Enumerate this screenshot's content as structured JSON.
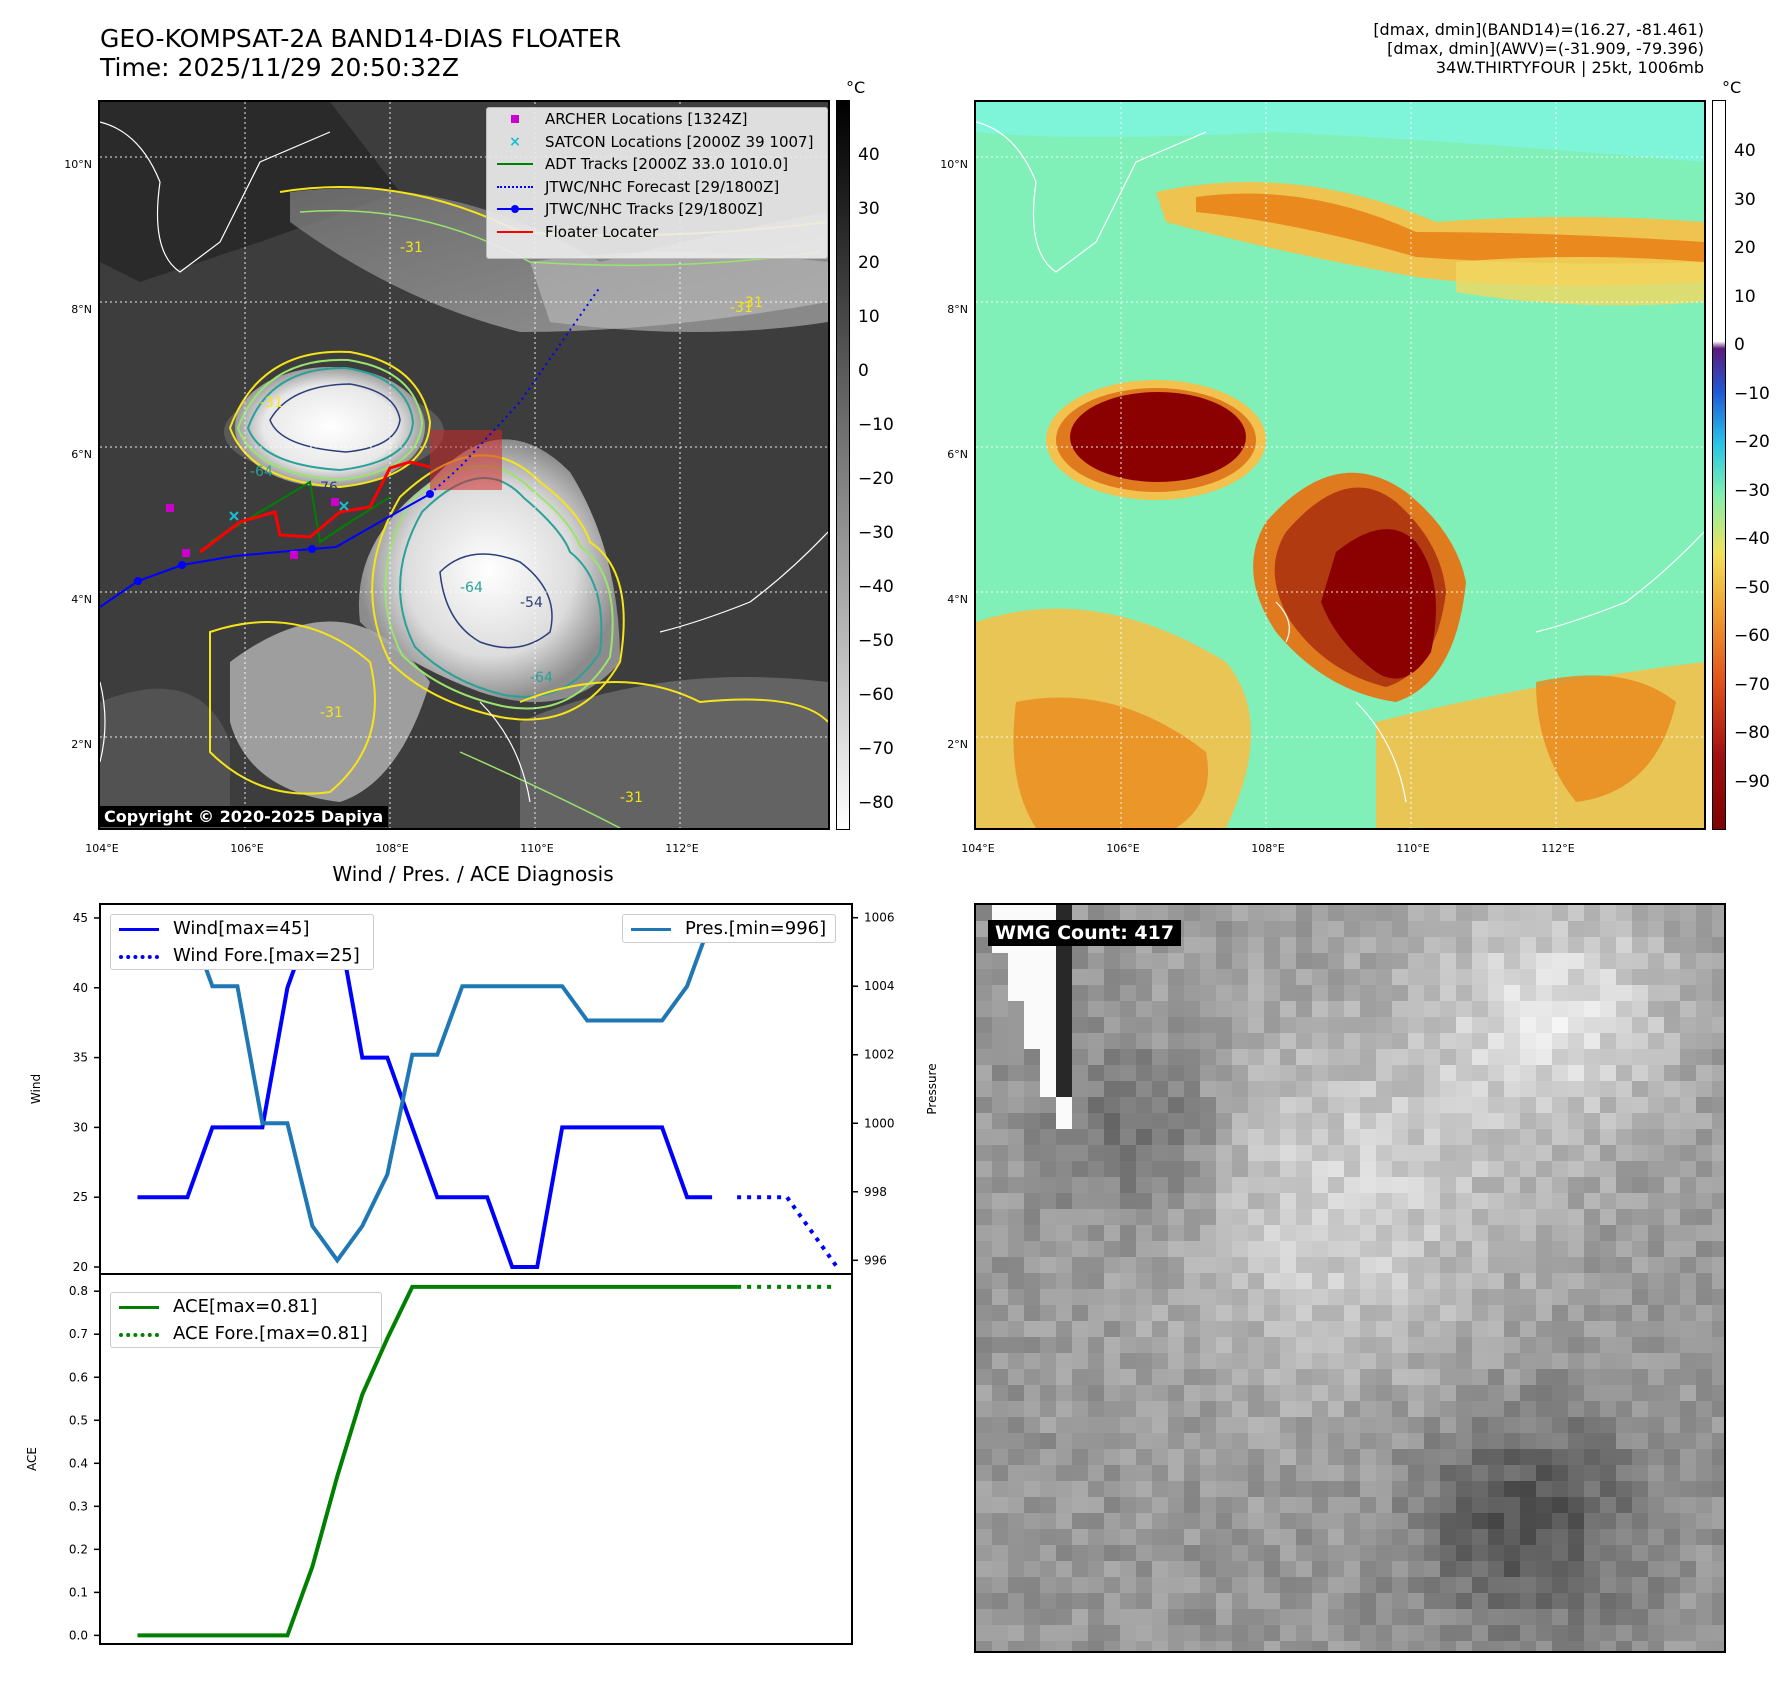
{
  "header": {
    "title_line1": "GEO-KOMPSAT-2A BAND14-DIAS FLOATER",
    "title_line2": "Time: 2025/11/29 20:50:32Z",
    "info_line1": "[dmax, dmin](BAND14)=(16.27, -81.461)",
    "info_line2": "[dmax, dmin](AWV)=(-31.909, -79.396)",
    "info_line3": "34W.THIRTYFOUR | 25kt, 1006mb"
  },
  "colors": {
    "wind": "#0000ff",
    "pressure": "#1f77b4",
    "ace": "#008000",
    "archer": "#cc00cc",
    "satcon": "#17becf",
    "adt": "#008000",
    "jtwc": "#0000ff",
    "floater": "#ff0000"
  },
  "ir_map": {
    "unit": "°C",
    "colorbar_ticks": [
      "40",
      "30",
      "20",
      "10",
      "0",
      "−10",
      "−20",
      "−30",
      "−40",
      "−50",
      "−60",
      "−70",
      "−80"
    ],
    "lon_labels": [
      "104°E",
      "106°E",
      "108°E",
      "110°E",
      "112°E"
    ],
    "lat_labels": [
      "10°N",
      "8°N",
      "6°N",
      "4°N",
      "2°N"
    ],
    "contour_labels": [
      "-31",
      "-31",
      "-31",
      "-31",
      "-64",
      "-76",
      "-64",
      "-54",
      "-64",
      "-31",
      "-31"
    ],
    "copyright": "Copyright © 2020-2025 Dapiya",
    "legend": [
      {
        "label": "ARCHER Locations [1324Z]",
        "icon": "square-marker"
      },
      {
        "label": "SATCON Locations [2000Z 39 1007]",
        "icon": "x-marker"
      },
      {
        "label": "ADT Tracks [2000Z 33.0 1010.0]",
        "icon": "solid-line"
      },
      {
        "label": "JTWC/NHC Forecast [29/1800Z]",
        "icon": "dotted-line"
      },
      {
        "label": "JTWC/NHC Tracks [29/1800Z]",
        "icon": "line-dot"
      },
      {
        "label": "Floater Locater",
        "icon": "solid-line"
      }
    ]
  },
  "awv_map": {
    "unit": "°C",
    "colorbar_ticks": [
      "40",
      "30",
      "20",
      "10",
      "0",
      "−10",
      "−20",
      "−30",
      "−40",
      "−50",
      "−60",
      "−70",
      "−80",
      "−90"
    ],
    "lon_labels": [
      "104°E",
      "106°E",
      "108°E",
      "110°E",
      "112°E"
    ],
    "lat_labels": [
      "10°N",
      "8°N",
      "6°N",
      "4°N",
      "2°N"
    ]
  },
  "wmg": {
    "label": "WMG Count: 417"
  },
  "chart_data": [
    {
      "type": "line",
      "title": "Wind / Pres. / ACE Diagnosis",
      "ylabel": "Wind",
      "ylabel2": "Pressure",
      "ylim": [
        19.5,
        46
      ],
      "ylim2": [
        995.6,
        1006.4
      ],
      "yticks": [
        20,
        25,
        30,
        35,
        40,
        45
      ],
      "yticks2": [
        996,
        998,
        1000,
        1002,
        1004,
        1006
      ],
      "series": [
        {
          "name": "Wind[max=45]",
          "style": "solid",
          "axis": "left",
          "x": [
            0,
            1,
            2,
            3,
            4,
            5,
            6,
            7,
            8,
            9,
            10,
            11,
            12,
            13,
            14,
            15,
            16,
            17,
            18,
            19,
            20,
            21,
            22,
            23,
            24
          ],
          "values": [
            25,
            25,
            25,
            30,
            30,
            30,
            40,
            45,
            45,
            35,
            35,
            30,
            25,
            25,
            25,
            20,
            20,
            30,
            30,
            30,
            30,
            30,
            25,
            25,
            null
          ]
        },
        {
          "name": "Wind Fore.[max=25]",
          "style": "dotted",
          "axis": "left",
          "x": [
            24,
            25,
            26,
            27,
            28
          ],
          "values": [
            25,
            25,
            25,
            22.5,
            20
          ]
        },
        {
          "name": "Pres.[min=996]",
          "style": "solid",
          "axis": "right",
          "x": [
            0,
            1,
            2,
            3,
            4,
            5,
            6,
            7,
            8,
            9,
            10,
            11,
            12,
            13,
            14,
            15,
            16,
            17,
            18,
            19,
            20,
            21,
            22,
            23,
            24
          ],
          "values": [
            1006,
            1006,
            1006,
            1004,
            1004,
            1000,
            1000,
            997,
            996,
            997,
            998.5,
            1002,
            1002,
            1004,
            1004,
            1004,
            1004,
            1004,
            1003,
            1003,
            1003,
            1003,
            1004,
            1006,
            null
          ]
        }
      ]
    },
    {
      "type": "line",
      "ylabel": "ACE",
      "ylim": [
        -0.02,
        0.84
      ],
      "yticks": [
        0.0,
        0.1,
        0.2,
        0.3,
        0.4,
        0.5,
        0.6,
        0.7,
        0.8
      ],
      "series": [
        {
          "name": "ACE[max=0.81]",
          "style": "solid",
          "x": [
            0,
            1,
            2,
            3,
            4,
            5,
            6,
            7,
            8,
            9,
            10,
            11,
            12,
            13,
            14,
            15,
            16,
            17,
            18,
            19,
            20,
            21,
            22,
            23,
            24
          ],
          "values": [
            0,
            0,
            0,
            0,
            0,
            0,
            0,
            0.16,
            0.37,
            0.56,
            0.69,
            0.81,
            0.81,
            0.81,
            0.81,
            0.81,
            0.81,
            0.81,
            0.81,
            0.81,
            0.81,
            0.81,
            0.81,
            0.81,
            0.81
          ]
        },
        {
          "name": "ACE Fore.[max=0.81]",
          "style": "dotted",
          "x": [
            24,
            25,
            26,
            27,
            28
          ],
          "values": [
            0.81,
            0.81,
            0.81,
            0.81,
            0.81
          ]
        }
      ]
    }
  ]
}
